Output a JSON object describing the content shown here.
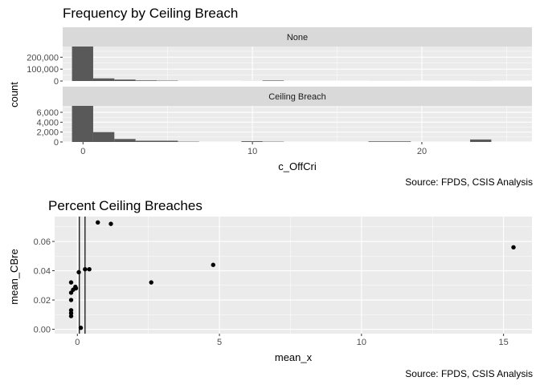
{
  "chart_data": [
    {
      "type": "bar",
      "title": "Frequency by Ceiling Breach",
      "xlabel": "c_OffCri",
      "ylabel": "count",
      "caption": "Source: FPDS, CSIS Analysis",
      "xlim": [
        -1.2,
        26.5
      ],
      "x_ticks": [
        0,
        10,
        20
      ],
      "x_tick_labels": [
        "0",
        "10",
        "20"
      ],
      "panels": [
        {
          "name": "None",
          "ylim": [
            0,
            290000
          ],
          "y_ticks": [
            0,
            100000,
            200000
          ],
          "y_tick_labels": [
            "0",
            "100,000",
            "200,000"
          ],
          "bars": [
            {
              "x0": -0.65,
              "x1": 0.6,
              "value": 292000
            },
            {
              "x0": 0.6,
              "x1": 1.85,
              "value": 22000
            },
            {
              "x0": 1.85,
              "x1": 3.1,
              "value": 12000
            },
            {
              "x0": 3.1,
              "x1": 4.35,
              "value": 5000
            },
            {
              "x0": 4.35,
              "x1": 5.6,
              "value": 3000
            },
            {
              "x0": 5.6,
              "x1": 6.85,
              "value": 300
            },
            {
              "x0": 9.35,
              "x1": 10.6,
              "value": 400
            },
            {
              "x0": 10.6,
              "x1": 11.85,
              "value": 4000
            },
            {
              "x0": 16.85,
              "x1": 18.1,
              "value": 300
            },
            {
              "x0": 18.1,
              "x1": 19.35,
              "value": 300
            },
            {
              "x0": 22.85,
              "x1": 24.1,
              "value": 400
            }
          ]
        },
        {
          "name": "Ceiling Breach",
          "ylim": [
            0,
            7300
          ],
          "y_ticks": [
            0,
            2000,
            4000,
            6000
          ],
          "y_tick_labels": [
            "0",
            "2,000",
            "4,000",
            "6,000"
          ],
          "bars": [
            {
              "x0": -0.65,
              "x1": 0.6,
              "value": 7400
            },
            {
              "x0": 0.6,
              "x1": 1.85,
              "value": 2000
            },
            {
              "x0": 1.85,
              "x1": 3.1,
              "value": 600
            },
            {
              "x0": 3.1,
              "x1": 4.35,
              "value": 250
            },
            {
              "x0": 4.35,
              "x1": 5.6,
              "value": 250
            },
            {
              "x0": 5.6,
              "x1": 6.85,
              "value": 60
            },
            {
              "x0": 9.35,
              "x1": 10.6,
              "value": 150
            },
            {
              "x0": 10.6,
              "x1": 11.85,
              "value": 60
            },
            {
              "x0": 16.85,
              "x1": 18.1,
              "value": 120
            },
            {
              "x0": 18.1,
              "x1": 19.35,
              "value": 120
            },
            {
              "x0": 22.85,
              "x1": 24.1,
              "value": 500
            }
          ]
        }
      ],
      "colors": {
        "bar": "#595959",
        "panel": "#ebebeb",
        "strip": "#d9d9d9",
        "grid": "#ffffff"
      }
    },
    {
      "type": "scatter",
      "title": "Percent Ceiling Breaches",
      "xlabel": "mean_x",
      "ylabel": "mean_CBre",
      "caption": "Source: FPDS, CSIS Analysis",
      "xlim": [
        -0.8,
        16.0
      ],
      "ylim": [
        -0.003,
        0.077
      ],
      "x_ticks": [
        0,
        5,
        10,
        15
      ],
      "x_tick_labels": [
        "0",
        "5",
        "10",
        "15"
      ],
      "y_ticks": [
        0.0,
        0.02,
        0.04,
        0.06
      ],
      "y_tick_labels": [
        "0.00",
        "0.02",
        "0.04",
        "0.06"
      ],
      "vlines": [
        0.07,
        0.27
      ],
      "points": [
        {
          "x": -0.22,
          "y": 0.009
        },
        {
          "x": -0.22,
          "y": 0.011
        },
        {
          "x": -0.22,
          "y": 0.013
        },
        {
          "x": -0.22,
          "y": 0.02
        },
        {
          "x": -0.22,
          "y": 0.025
        },
        {
          "x": -0.22,
          "y": 0.032
        },
        {
          "x": -0.15,
          "y": 0.027
        },
        {
          "x": -0.07,
          "y": 0.029
        },
        {
          "x": -0.05,
          "y": 0.028
        },
        {
          "x": 0.05,
          "y": 0.039
        },
        {
          "x": 0.12,
          "y": 0.001
        },
        {
          "x": 0.27,
          "y": 0.041
        },
        {
          "x": 0.42,
          "y": 0.041
        },
        {
          "x": 0.72,
          "y": 0.073
        },
        {
          "x": 1.18,
          "y": 0.072
        },
        {
          "x": 2.6,
          "y": 0.032
        },
        {
          "x": 4.78,
          "y": 0.044
        },
        {
          "x": 15.35,
          "y": 0.056
        }
      ],
      "colors": {
        "point": "#000000",
        "panel": "#ebebeb",
        "grid": "#ffffff"
      }
    }
  ]
}
